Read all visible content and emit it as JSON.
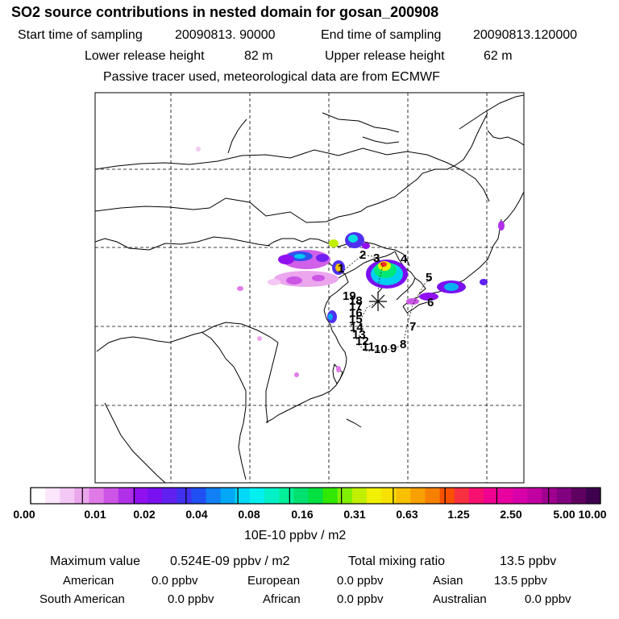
{
  "title": "SO2 source contributions in nested domain for gosan_200908",
  "sampling": {
    "start_label": "Start time of sampling",
    "start_value": "20090813. 90000",
    "end_label": "End time of sampling",
    "end_value": "20090813.120000"
  },
  "release": {
    "lower_label": "Lower release height",
    "lower_value": "82 m",
    "upper_label": "Upper release height",
    "upper_value": "62 m"
  },
  "note": "Passive tracer used, meteorological data are from ECMWF",
  "trajectory_labels": [
    "1",
    "2",
    "3",
    "4",
    "5",
    "6",
    "7",
    "8",
    "9",
    "10",
    "11",
    "12",
    "13",
    "14",
    "15",
    "16",
    "17",
    "18",
    "19"
  ],
  "colorbar": {
    "ticks": [
      "0.00",
      "0.01",
      "0.02",
      "0.04",
      "0.08",
      "0.16",
      "0.31",
      "0.63",
      "1.25",
      "2.50",
      "5.00",
      "10.00"
    ],
    "unit": "10E-10 ppbv / m2",
    "colors": [
      "#ffffff",
      "#fbe6fb",
      "#f4c8f4",
      "#eba6ee",
      "#e07ae8",
      "#cc55e6",
      "#b030e8",
      "#9010f0",
      "#7a10f0",
      "#6020f0",
      "#4030f0",
      "#2050f4",
      "#1080f4",
      "#00a8f8",
      "#00d8f8",
      "#00f0f0",
      "#00f0c8",
      "#00f098",
      "#00e070",
      "#00e040",
      "#30e800",
      "#80f000",
      "#c0f000",
      "#f0f000",
      "#f8e000",
      "#f8c000",
      "#f8a000",
      "#f88000",
      "#f85000",
      "#f83040",
      "#f81070",
      "#f00090",
      "#e800a0",
      "#d800a8",
      "#c000a0",
      "#a00090",
      "#800080",
      "#600060",
      "#400050"
    ]
  },
  "stats": {
    "max_label": "Maximum value",
    "max_value": "0.524E-09 ppbv / m2",
    "total_label": "Total mixing ratio",
    "total_value": "13.5 ppbv"
  },
  "regions": [
    {
      "name": "American",
      "value": "0.0 ppbv"
    },
    {
      "name": "European",
      "value": "0.0 ppbv"
    },
    {
      "name": "Asian",
      "value": "13.5 ppbv"
    },
    {
      "name": "South American",
      "value": "0.0 ppbv"
    },
    {
      "name": "African",
      "value": "0.0 ppbv"
    },
    {
      "name": "Australian",
      "value": "0.0 ppbv"
    }
  ]
}
